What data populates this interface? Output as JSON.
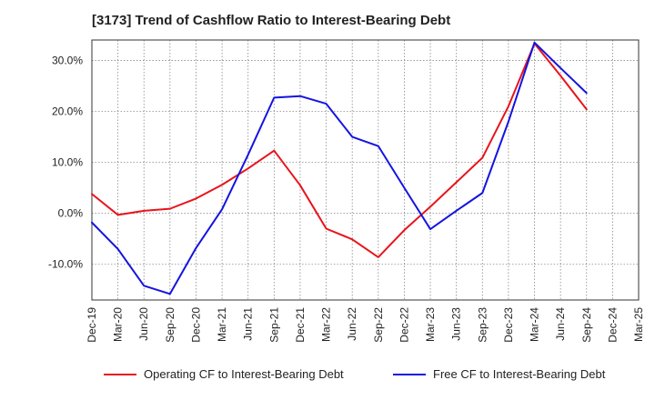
{
  "chart_data": {
    "type": "line",
    "title": "[3173]  Trend of Cashflow Ratio to Interest-Bearing Debt",
    "xlabel": "",
    "ylabel": "",
    "categories": [
      "Dec-19",
      "Mar-20",
      "Jun-20",
      "Sep-20",
      "Dec-20",
      "Mar-21",
      "Jun-21",
      "Sep-21",
      "Dec-21",
      "Mar-22",
      "Jun-22",
      "Sep-22",
      "Dec-22",
      "Mar-23",
      "Jun-23",
      "Sep-23",
      "Dec-23",
      "Mar-24",
      "Jun-24",
      "Sep-24",
      "Dec-24",
      "Mar-25"
    ],
    "ylim": [
      -17,
      34
    ],
    "yticks": [
      -10,
      0,
      10,
      20,
      30
    ],
    "ytick_labels": [
      "-10.0%",
      "0.0%",
      "10.0%",
      "20.0%",
      "30.0%"
    ],
    "grid": true,
    "legend_position": "bottom",
    "series": [
      {
        "name": "Operating CF to Interest-Bearing Debt",
        "color": "#e8141c",
        "values": [
          3.8,
          -0.3,
          0.5,
          0.9,
          2.9,
          5.6,
          8.8,
          12.3,
          5.5,
          -3.0,
          -5.1,
          -8.6,
          -3.3,
          1.3,
          6.1,
          10.9,
          21.0,
          33.3,
          27.0,
          20.4,
          null,
          null
        ]
      },
      {
        "name": "Free CF to Interest-Bearing Debt",
        "color": "#1414e0",
        "values": [
          -1.8,
          -7.0,
          -14.2,
          -15.8,
          -6.8,
          0.8,
          11.5,
          22.7,
          23.0,
          21.5,
          15.0,
          13.2,
          5.0,
          -3.1,
          0.5,
          4.0,
          18.0,
          33.5,
          28.5,
          23.6,
          null,
          null
        ]
      }
    ]
  }
}
